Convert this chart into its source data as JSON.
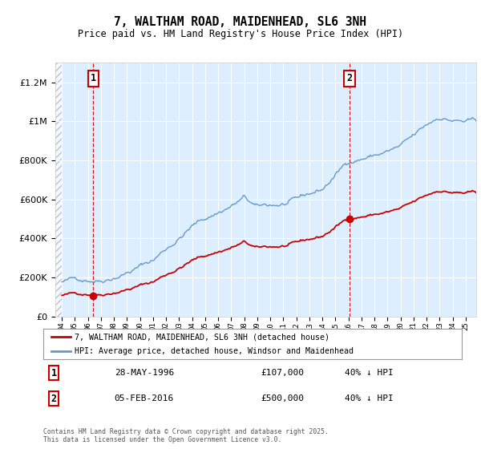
{
  "title": "7, WALTHAM ROAD, MAIDENHEAD, SL6 3NH",
  "subtitle": "Price paid vs. HM Land Registry's House Price Index (HPI)",
  "legend_line1": "7, WALTHAM ROAD, MAIDENHEAD, SL6 3NH (detached house)",
  "legend_line2": "HPI: Average price, detached house, Windsor and Maidenhead",
  "annotation1_label": "1",
  "annotation1_date": "28-MAY-1996",
  "annotation1_price": "£107,000",
  "annotation1_hpi": "40% ↓ HPI",
  "annotation1_year": 1996.42,
  "annotation1_value": 107000,
  "annotation2_label": "2",
  "annotation2_date": "05-FEB-2016",
  "annotation2_price": "£500,000",
  "annotation2_hpi": "40% ↓ HPI",
  "annotation2_year": 2016.1,
  "annotation2_value": 500000,
  "footer": "Contains HM Land Registry data © Crown copyright and database right 2025.\nThis data is licensed under the Open Government Licence v3.0.",
  "red_color": "#cc0000",
  "blue_color": "#6699cc",
  "background_chart": "#ddeeff",
  "background_fig": "#ffffff",
  "ylim_max": 1300000,
  "xlim_start": 1993.5,
  "xlim_end": 2025.8
}
